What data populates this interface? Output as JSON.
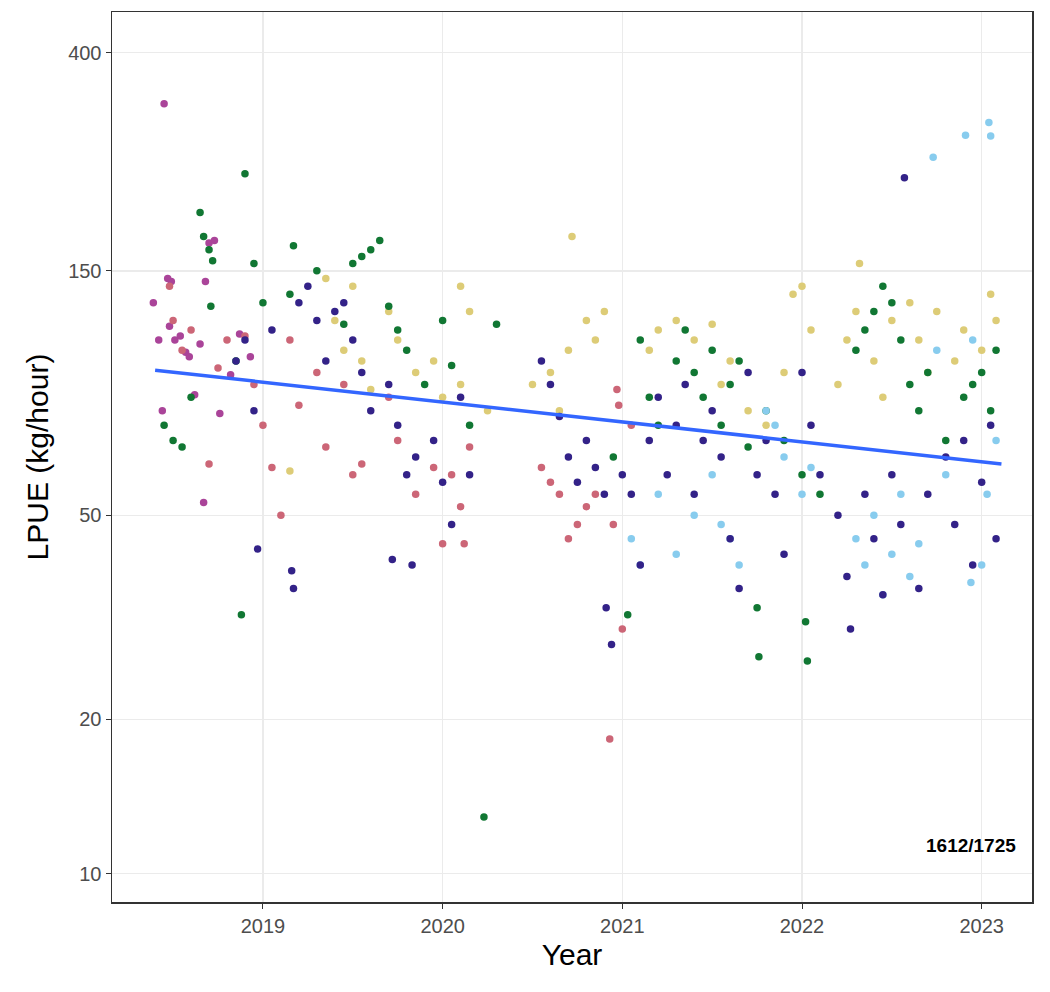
{
  "chart_data": {
    "type": "scatter",
    "x_label": "Year",
    "y_label": "LPUE (kg/hour)",
    "log": "y",
    "grid": true,
    "xlim": [
      2018.16,
      2023.28
    ],
    "xticks": [
      2019,
      2020,
      2021,
      2022,
      2023
    ],
    "ylim": [
      8.8,
      480
    ],
    "yticks": [
      10,
      20,
      50,
      150,
      400
    ],
    "annotations": [
      "1612/1725"
    ],
    "series": [
      {
        "type": "scatter",
        "marker": "circle",
        "color": "#AA4499",
        "x": [
          2018.39,
          2018.42,
          2018.44,
          2018.45,
          2018.47,
          2018.48,
          2018.49,
          2018.51,
          2018.54,
          2018.57,
          2018.59,
          2018.62,
          2018.65,
          2018.67,
          2018.68,
          2018.7,
          2018.73,
          2018.76,
          2018.82,
          2018.87,
          2018.93
        ],
        "values": [
          130,
          110,
          80,
          318,
          145,
          117,
          143,
          110,
          112,
          104,
          102,
          86,
          108,
          53,
          143,
          170,
          172,
          79,
          94,
          113,
          102
        ]
      },
      {
        "type": "scatter",
        "marker": "circle",
        "color": "#CC6677",
        "x": [
          2018.48,
          2018.5,
          2018.55,
          2018.6,
          2018.7,
          2018.75,
          2018.8,
          2018.9,
          2018.95,
          2019.0,
          2019.05,
          2019.1,
          2019.15,
          2019.2,
          2019.3,
          2019.35,
          2019.45,
          2019.5,
          2019.55,
          2019.7,
          2019.75,
          2019.85,
          2019.95,
          2020.0,
          2020.05,
          2020.1,
          2020.12,
          2020.15,
          2020.55,
          2020.6,
          2020.65,
          2020.7,
          2020.75,
          2020.8,
          2020.85,
          2020.93,
          2020.95,
          2020.97,
          2020.98,
          2021.0,
          2021.05
        ],
        "values": [
          140,
          120,
          105,
          115,
          63,
          97,
          110,
          112,
          90,
          75,
          62,
          50,
          110,
          82,
          95,
          68,
          90,
          60,
          63,
          85,
          70,
          55,
          62,
          44,
          60,
          52,
          44,
          68,
          62,
          58,
          55,
          45,
          48,
          52,
          55,
          18.3,
          48,
          88,
          82,
          30,
          75
        ]
      },
      {
        "type": "scatter",
        "marker": "circle",
        "color": "#DDCC77",
        "x": [
          2019.15,
          2019.35,
          2019.4,
          2019.45,
          2019.5,
          2019.55,
          2019.6,
          2019.7,
          2019.75,
          2019.85,
          2019.95,
          2020.0,
          2020.1,
          2020.1,
          2020.15,
          2020.25,
          2020.5,
          2020.6,
          2020.65,
          2020.7,
          2020.72,
          2020.8,
          2020.85,
          2020.9,
          2021.15,
          2021.2,
          2021.3,
          2021.4,
          2021.5,
          2021.55,
          2021.6,
          2021.7,
          2021.8,
          2021.9,
          2021.95,
          2022.0,
          2022.05,
          2022.2,
          2022.25,
          2022.3,
          2022.32,
          2022.4,
          2022.45,
          2022.5,
          2022.6,
          2022.65,
          2022.7,
          2022.75,
          2022.85,
          2022.9,
          2023.0,
          2023.05,
          2023.08
        ],
        "values": [
          61,
          145,
          120,
          105,
          140,
          100,
          88,
          125,
          110,
          95,
          100,
          85,
          90,
          140,
          125,
          80,
          90,
          95,
          80,
          105,
          175,
          120,
          110,
          125,
          105,
          115,
          120,
          110,
          118,
          90,
          100,
          80,
          75,
          95,
          135,
          140,
          115,
          90,
          110,
          125,
          155,
          100,
          85,
          120,
          130,
          110,
          95,
          125,
          100,
          115,
          105,
          135,
          120
        ]
      },
      {
        "type": "scatter",
        "marker": "circle",
        "color": "#117733",
        "x": [
          2018.45,
          2018.5,
          2018.55,
          2018.6,
          2018.65,
          2018.67,
          2018.7,
          2018.72,
          2018.71,
          2018.85,
          2018.9,
          2018.88,
          2018.95,
          2019.0,
          2019.15,
          2019.17,
          2019.3,
          2019.45,
          2019.5,
          2019.55,
          2019.6,
          2019.65,
          2019.7,
          2019.75,
          2019.8,
          2019.9,
          2020.0,
          2020.05,
          2020.15,
          2020.23,
          2020.3,
          2020.95,
          2021.03,
          2021.1,
          2021.15,
          2021.2,
          2021.3,
          2021.35,
          2021.4,
          2021.45,
          2021.5,
          2021.55,
          2021.6,
          2021.65,
          2021.7,
          2021.75,
          2021.76,
          2021.8,
          2021.9,
          2022.0,
          2022.02,
          2022.03,
          2022.1,
          2022.3,
          2022.35,
          2022.4,
          2022.45,
          2022.5,
          2022.55,
          2022.6,
          2022.65,
          2022.7,
          2022.8,
          2022.9,
          2022.95,
          2023.0,
          2023.05,
          2023.08
        ],
        "values": [
          75,
          70,
          68,
          85,
          195,
          175,
          165,
          157,
          128,
          100,
          232,
          32,
          155,
          130,
          135,
          168,
          150,
          118,
          155,
          160,
          165,
          172,
          128,
          115,
          105,
          90,
          120,
          98,
          75,
          12.9,
          118,
          65,
          32,
          110,
          85,
          75,
          100,
          115,
          95,
          85,
          105,
          75,
          90,
          100,
          68,
          33,
          26.5,
          80,
          70,
          60,
          31,
          26,
          55,
          105,
          115,
          125,
          140,
          130,
          110,
          90,
          80,
          95,
          70,
          85,
          90,
          95,
          80,
          105
        ]
      },
      {
        "type": "scatter",
        "marker": "circle",
        "color": "#88CCEE",
        "x": [
          2021.05,
          2021.1,
          2021.2,
          2021.3,
          2021.4,
          2021.5,
          2021.55,
          2021.6,
          2021.65,
          2021.8,
          2021.85,
          2021.9,
          2022.0,
          2022.05,
          2022.3,
          2022.35,
          2022.4,
          2022.45,
          2022.5,
          2022.55,
          2022.6,
          2022.65,
          2022.73,
          2022.75,
          2022.8,
          2022.91,
          2022.94,
          2022.95,
          2023.0,
          2023.03,
          2023.04,
          2023.05,
          2023.08
        ],
        "values": [
          45,
          40,
          55,
          42,
          50,
          60,
          48,
          45,
          40,
          80,
          75,
          65,
          55,
          62,
          45,
          40,
          50,
          35,
          42,
          55,
          38,
          44,
          250,
          105,
          60,
          276,
          37,
          110,
          40,
          55,
          292,
          275,
          70
        ]
      },
      {
        "type": "scatter",
        "marker": "circle",
        "color": "#332288",
        "x": [
          2018.85,
          2018.9,
          2018.95,
          2018.97,
          2019.05,
          2019.16,
          2019.17,
          2019.2,
          2019.25,
          2019.3,
          2019.35,
          2019.4,
          2019.45,
          2019.5,
          2019.55,
          2019.6,
          2019.7,
          2019.72,
          2019.75,
          2019.8,
          2019.83,
          2019.85,
          2019.95,
          2020.0,
          2020.05,
          2020.1,
          2020.15,
          2020.55,
          2020.6,
          2020.65,
          2020.7,
          2020.75,
          2020.8,
          2020.85,
          2020.9,
          2020.91,
          2020.94,
          2021.0,
          2021.05,
          2021.1,
          2021.15,
          2021.2,
          2021.25,
          2021.3,
          2021.35,
          2021.4,
          2021.45,
          2021.5,
          2021.55,
          2021.6,
          2021.65,
          2021.7,
          2021.75,
          2021.8,
          2021.85,
          2021.9,
          2022.0,
          2022.05,
          2022.1,
          2022.2,
          2022.25,
          2022.27,
          2022.35,
          2022.4,
          2022.45,
          2022.5,
          2022.55,
          2022.57,
          2022.65,
          2022.7,
          2022.8,
          2022.85,
          2022.9,
          2022.95,
          2023.0,
          2023.05,
          2023.08
        ],
        "values": [
          100,
          110,
          80,
          43,
          115,
          39,
          36,
          130,
          140,
          120,
          100,
          125,
          130,
          110,
          95,
          80,
          90,
          41,
          75,
          60,
          40,
          65,
          70,
          58,
          48,
          85,
          60,
          100,
          90,
          78,
          65,
          58,
          70,
          62,
          55,
          33,
          28,
          60,
          55,
          40,
          70,
          85,
          60,
          75,
          90,
          55,
          70,
          80,
          65,
          45,
          36,
          95,
          60,
          70,
          55,
          42,
          95,
          75,
          60,
          50,
          38,
          30,
          55,
          45,
          35,
          60,
          48,
          228,
          36,
          55,
          65,
          48,
          70,
          40,
          58,
          75,
          45
        ]
      },
      {
        "type": "line",
        "line_style": "solid",
        "color": "#3366FF",
        "x": [
          2018.4,
          2023.11
        ],
        "values": [
          96,
          63
        ]
      }
    ]
  }
}
